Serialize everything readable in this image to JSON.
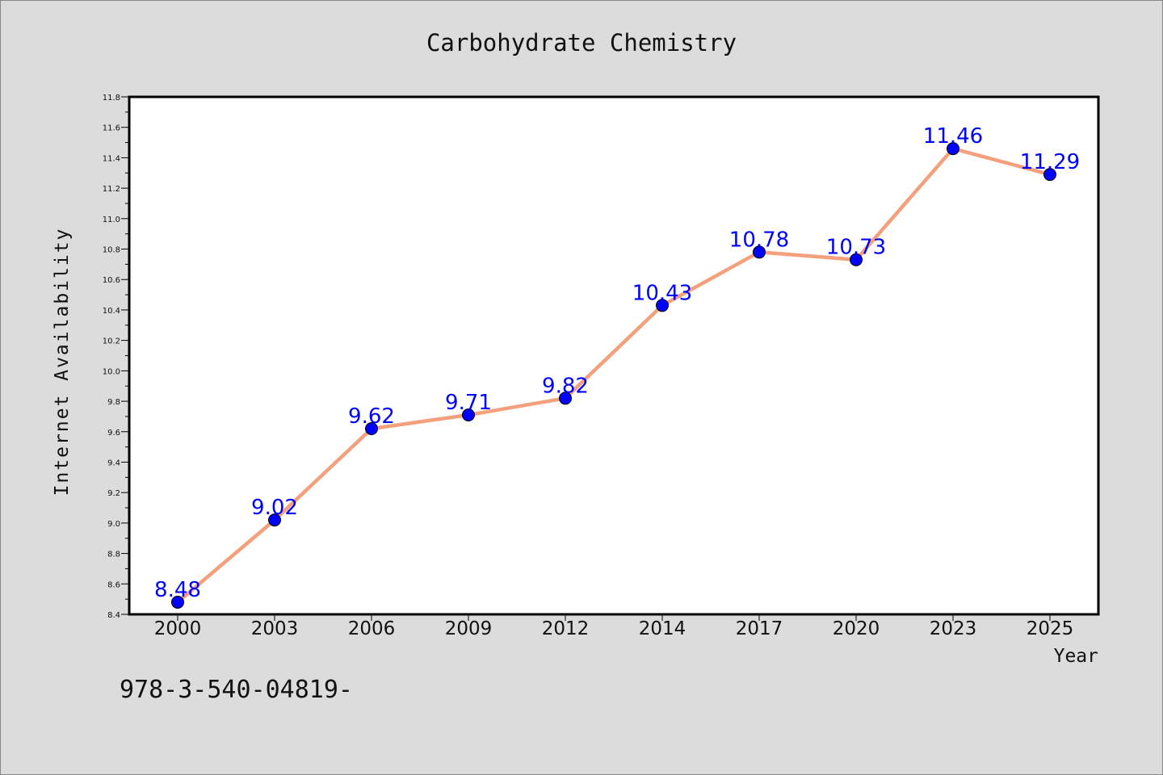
{
  "chart_data": {
    "type": "line",
    "title": "Carbohydrate Chemistry",
    "xlabel": "Year",
    "ylabel": "Internet Availability",
    "categories": [
      "2000",
      "2003",
      "2006",
      "2009",
      "2012",
      "2014",
      "2017",
      "2020",
      "2023",
      "2025"
    ],
    "series": [
      {
        "values": [
          8.48,
          9.02,
          9.62,
          9.71,
          9.82,
          10.43,
          10.78,
          10.73,
          11.46,
          11.29
        ]
      }
    ],
    "data_labels": [
      "8.48",
      "9.02",
      "9.62",
      "9.71",
      "9.82",
      "10.43",
      "10.78",
      "10.73",
      "11.46",
      "11.29"
    ],
    "ylim": [
      8.4,
      11.8
    ],
    "yticks": [
      "8.4",
      "8.6",
      "8.8",
      "9.0",
      "9.2",
      "9.4",
      "9.6",
      "9.8",
      "10.0",
      "10.2",
      "10.4",
      "10.6",
      "10.8",
      "11.0",
      "11.2",
      "11.4",
      "11.6",
      "11.8"
    ],
    "grid": false,
    "line_color": "#f4a07c",
    "marker_color": "#0000ff",
    "label_color": "#0000ff"
  },
  "footer_text": "978-3-540-04819-"
}
